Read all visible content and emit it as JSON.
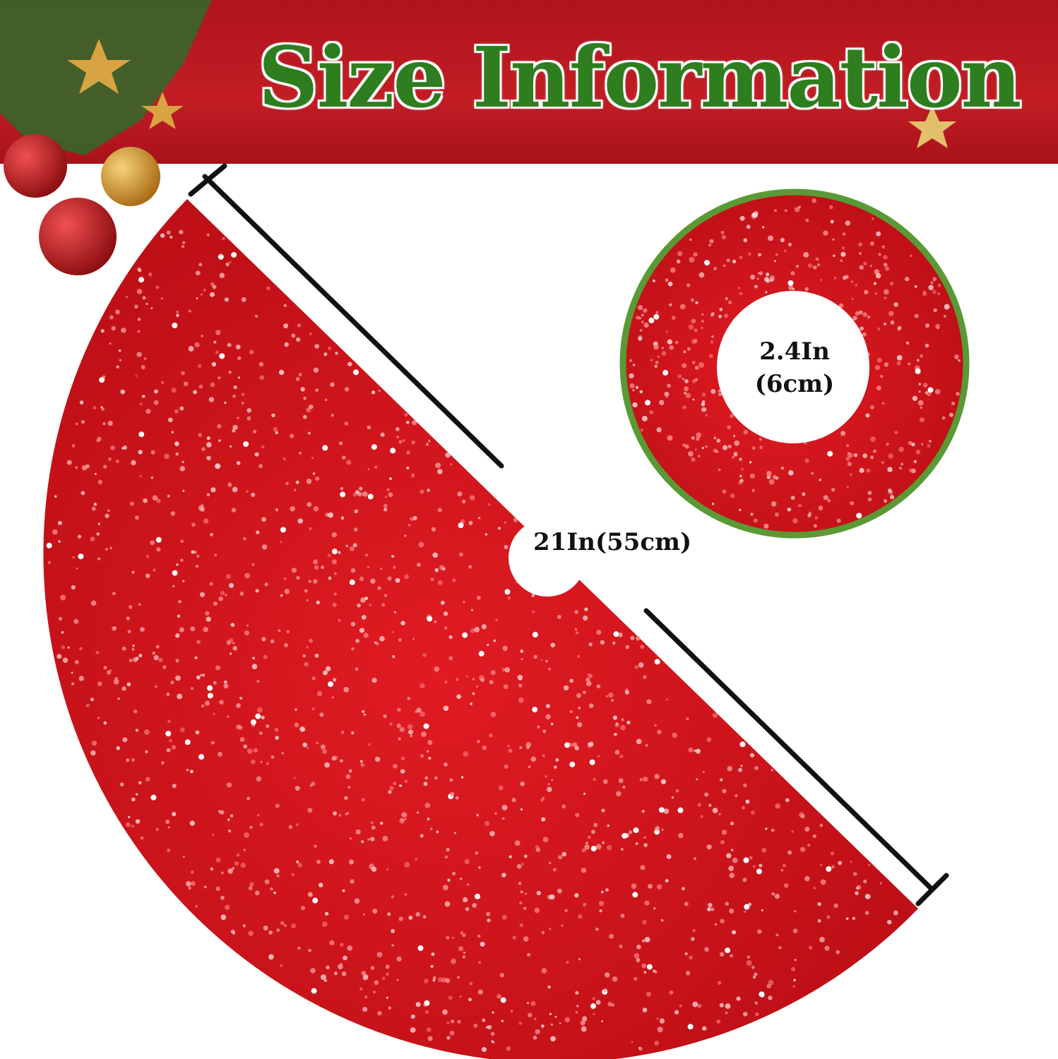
{
  "title": "Size Information",
  "dimensions": {
    "outer_diameter": "21In(55cm)",
    "inner_hole_in": "2.4In",
    "inner_hole_cm": "(6cm)"
  },
  "colors": {
    "banner": "#c21d24",
    "title": "#2e7d1f",
    "fabric": "#d0121a",
    "inset_border": "#5a9a35"
  }
}
